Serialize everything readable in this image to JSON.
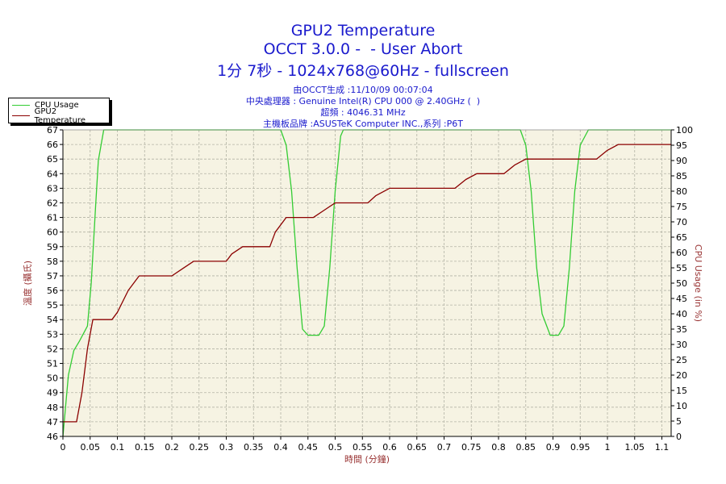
{
  "titles": {
    "line1": "GPU2 Temperature",
    "line2": "OCCT 3.0.0 -  - User Abort",
    "line3": "1分 7秒 - 1024x768@60Hz - fullscreen"
  },
  "info": {
    "line1": "由OCCT生成 :11/10/09 00:07:04",
    "line2": "中央處理器 : Genuine Intel(R) CPU 000 @ 2.40GHz (  )",
    "line3": "超頻 : 4046.31 MHz",
    "line4": "主機板品牌 :ASUSTeK Computer INC.,系列 :P6T"
  },
  "colors": {
    "cpu": "#33cc33",
    "gpu": "#8b0000",
    "plot_bg": "#f6f3e3",
    "axis_label": "#993333",
    "tick_text": "#000000"
  },
  "chart_data": {
    "type": "line",
    "xlabel": "時間 (分鐘)",
    "ylabel_left": "溫度 (攝氏)",
    "ylabel_right": "CPU Usage (in %)",
    "xlim": [
      0,
      1.117
    ],
    "ylim_left": [
      46,
      67
    ],
    "ylim_right": [
      0,
      100
    ],
    "x_ticks": [
      "0",
      "0.05",
      "0.1",
      "0.15",
      "0.2",
      "0.25",
      "0.3",
      "0.35",
      "0.4",
      "0.45",
      "0.5",
      "0.55",
      "0.6",
      "0.65",
      "0.7",
      "0.75",
      "0.8",
      "0.85",
      "0.9",
      "0.95",
      "1",
      "1.05",
      "1.1"
    ],
    "x_tick_values": [
      0,
      0.05,
      0.1,
      0.15,
      0.2,
      0.25,
      0.3,
      0.35,
      0.4,
      0.45,
      0.5,
      0.55,
      0.6,
      0.65,
      0.7,
      0.75,
      0.8,
      0.85,
      0.9,
      0.95,
      1,
      1.05,
      1.1
    ],
    "y_left_ticks": [
      46,
      47,
      48,
      49,
      50,
      51,
      52,
      53,
      54,
      55,
      56,
      57,
      58,
      59,
      60,
      61,
      62,
      63,
      64,
      65,
      66,
      67
    ],
    "y_right_ticks": [
      0,
      5,
      10,
      15,
      20,
      25,
      30,
      35,
      40,
      45,
      50,
      55,
      60,
      65,
      70,
      75,
      80,
      85,
      90,
      95,
      100
    ],
    "grid": true,
    "legend_position": "top-left",
    "series": [
      {
        "name": "CPU Usage",
        "axis": "right",
        "points": [
          [
            0,
            0
          ],
          [
            0.005,
            10
          ],
          [
            0.01,
            20
          ],
          [
            0.02,
            28
          ],
          [
            0.03,
            31
          ],
          [
            0.045,
            36
          ],
          [
            0.052,
            50
          ],
          [
            0.06,
            75
          ],
          [
            0.065,
            90
          ],
          [
            0.075,
            100
          ],
          [
            0.4,
            100
          ],
          [
            0.41,
            95
          ],
          [
            0.42,
            80
          ],
          [
            0.43,
            55
          ],
          [
            0.44,
            35
          ],
          [
            0.45,
            33
          ],
          [
            0.47,
            33
          ],
          [
            0.48,
            36
          ],
          [
            0.49,
            55
          ],
          [
            0.5,
            80
          ],
          [
            0.51,
            98
          ],
          [
            0.515,
            100
          ],
          [
            0.84,
            100
          ],
          [
            0.85,
            95
          ],
          [
            0.86,
            80
          ],
          [
            0.87,
            55
          ],
          [
            0.88,
            40
          ],
          [
            0.895,
            33
          ],
          [
            0.91,
            33
          ],
          [
            0.92,
            36
          ],
          [
            0.93,
            55
          ],
          [
            0.94,
            80
          ],
          [
            0.95,
            95
          ],
          [
            0.965,
            100
          ],
          [
            1.117,
            100
          ]
        ]
      },
      {
        "name": "GPU2 Temperature",
        "axis": "left",
        "points": [
          [
            0,
            47
          ],
          [
            0.025,
            47
          ],
          [
            0.035,
            49
          ],
          [
            0.045,
            52
          ],
          [
            0.055,
            54
          ],
          [
            0.075,
            54
          ],
          [
            0.09,
            54
          ],
          [
            0.1,
            54.5
          ],
          [
            0.12,
            56
          ],
          [
            0.14,
            57
          ],
          [
            0.2,
            57
          ],
          [
            0.22,
            57.5
          ],
          [
            0.24,
            58
          ],
          [
            0.3,
            58
          ],
          [
            0.31,
            58.5
          ],
          [
            0.33,
            59
          ],
          [
            0.38,
            59
          ],
          [
            0.39,
            60
          ],
          [
            0.41,
            61
          ],
          [
            0.46,
            61
          ],
          [
            0.48,
            61.5
          ],
          [
            0.5,
            62
          ],
          [
            0.56,
            62
          ],
          [
            0.575,
            62.5
          ],
          [
            0.6,
            63
          ],
          [
            0.72,
            63
          ],
          [
            0.74,
            63.6
          ],
          [
            0.76,
            64
          ],
          [
            0.81,
            64
          ],
          [
            0.83,
            64.6
          ],
          [
            0.85,
            65
          ],
          [
            0.98,
            65
          ],
          [
            1.0,
            65.6
          ],
          [
            1.02,
            66
          ],
          [
            1.117,
            66
          ]
        ]
      }
    ]
  }
}
